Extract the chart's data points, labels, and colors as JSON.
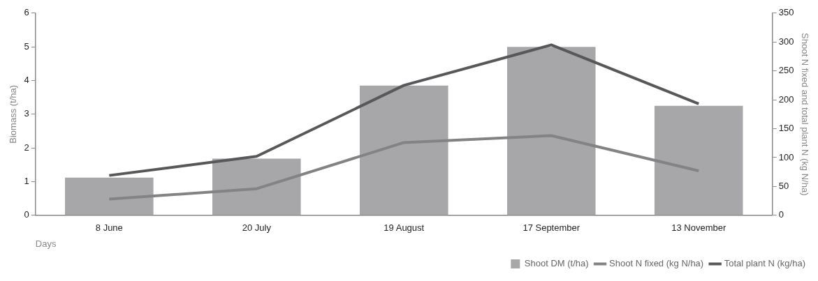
{
  "chart_data": {
    "type": "bar",
    "xlabel": "Days",
    "ylabel": "Biomass (t/ha)",
    "y2label": "Shoot N fixed and total plant N (kg N/ha)",
    "categories": [
      "8 June",
      "20 July",
      "19 August",
      "17 September",
      "13 November"
    ],
    "series": [
      {
        "name": "Shoot DM (t/ha)",
        "color": "#a7a7a9",
        "values": [
          1.12,
          1.68,
          3.85,
          5.0,
          3.25
        ]
      },
      {
        "name": "Shoot N fixed (kg N/ha)",
        "type": "line",
        "axis": "y2",
        "color": "#838385",
        "values": [
          28,
          46,
          126,
          138,
          77
        ]
      },
      {
        "name": "Total plant N (kg/ha)",
        "type": "line",
        "axis": "y2",
        "color": "#58585a",
        "values": [
          69,
          102,
          225,
          295,
          193
        ]
      }
    ],
    "ylim": [
      0,
      6
    ],
    "yticks": [
      0,
      1,
      2,
      3,
      4,
      5,
      6
    ],
    "y2lim": [
      0,
      350
    ],
    "y2ticks": [
      0,
      50,
      100,
      150,
      200,
      250,
      300,
      350
    ],
    "grid": false,
    "legend": "bottom right",
    "marker": "none"
  }
}
